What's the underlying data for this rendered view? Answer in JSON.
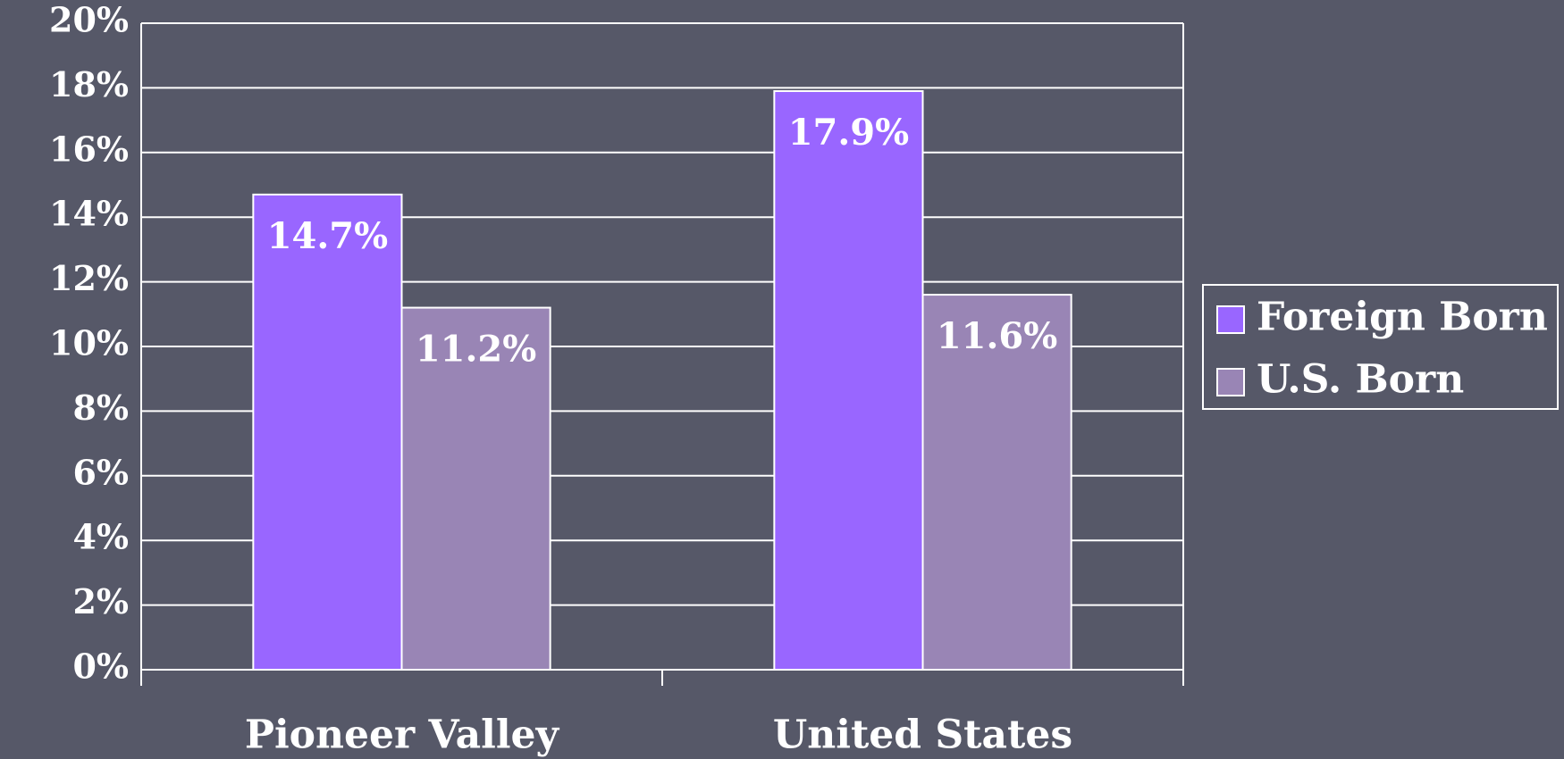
{
  "chart_data": {
    "type": "bar",
    "categories": [
      "Pioneer Valley",
      "United States"
    ],
    "series": [
      {
        "name": "Foreign Born",
        "color": "#9966ff",
        "values": [
          14.7,
          17.9
        ],
        "value_labels": [
          "14.7%",
          "17.9%"
        ]
      },
      {
        "name": "U.S. Born",
        "color": "#9985b5",
        "values": [
          11.2,
          11.6
        ],
        "value_labels": [
          "11.2%",
          "11.6%"
        ]
      }
    ],
    "ylim": [
      0,
      20
    ],
    "yticks": [
      {
        "value": 0,
        "label": "0%"
      },
      {
        "value": 2,
        "label": "2%"
      },
      {
        "value": 4,
        "label": "4%"
      },
      {
        "value": 6,
        "label": "6%"
      },
      {
        "value": 8,
        "label": "8%"
      },
      {
        "value": 10,
        "label": "10%"
      },
      {
        "value": 12,
        "label": "12%"
      },
      {
        "value": 14,
        "label": "14%"
      },
      {
        "value": 16,
        "label": "16%"
      },
      {
        "value": 18,
        "label": "18%"
      },
      {
        "value": 20,
        "label": "20%"
      }
    ],
    "grid": true,
    "legend": "right"
  }
}
